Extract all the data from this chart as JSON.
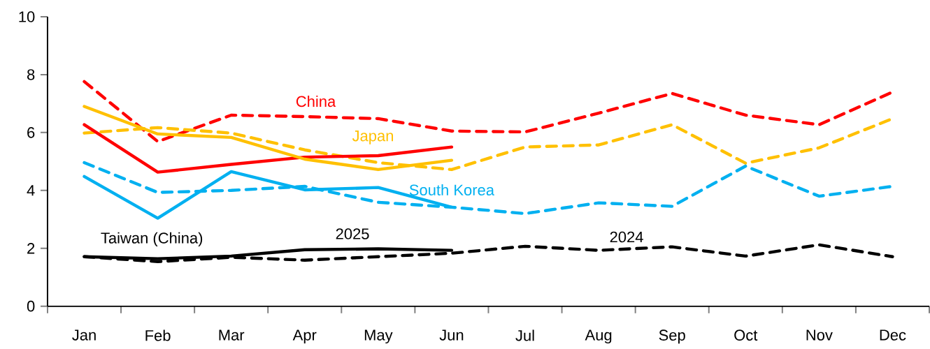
{
  "chart_data": {
    "type": "line",
    "categories": [
      "Jan",
      "Feb",
      "Mar",
      "Apr",
      "May",
      "Jun",
      "Jul",
      "Aug",
      "Sep",
      "Oct",
      "Nov",
      "Dec"
    ],
    "series": [
      {
        "color": "#ff0000",
        "line_style": "dashed",
        "values": [
          7.76,
          5.69,
          6.6,
          6.55,
          6.48,
          6.05,
          6.02,
          6.67,
          7.35,
          6.6,
          6.27,
          7.4
        ]
      },
      {
        "color": "#ffc000",
        "line_style": "dashed",
        "values": [
          5.98,
          6.17,
          5.98,
          5.4,
          4.96,
          4.72,
          5.5,
          5.57,
          6.27,
          4.94,
          5.47,
          6.48
        ]
      },
      {
        "color": "#00b0f0",
        "line_style": "dashed",
        "values": [
          4.96,
          3.93,
          4.0,
          4.14,
          3.59,
          3.42,
          3.2,
          3.57,
          3.45,
          4.84,
          3.8,
          4.14
        ]
      },
      {
        "color": "#000000",
        "line_style": "dashed",
        "values": [
          1.71,
          1.54,
          1.69,
          1.59,
          1.71,
          1.83,
          2.07,
          1.93,
          2.05,
          1.73,
          2.12,
          1.71
        ]
      },
      {
        "name": "China",
        "color": "#ff0000",
        "line_style": "solid",
        "values": [
          6.27,
          4.63,
          4.9,
          5.15,
          5.2,
          5.5,
          null,
          null,
          null,
          null,
          null,
          null
        ]
      },
      {
        "name": "Japan",
        "color": "#ffc000",
        "line_style": "solid",
        "values": [
          6.9,
          5.95,
          5.83,
          5.08,
          4.72,
          5.04,
          null,
          null,
          null,
          null,
          null,
          null
        ]
      },
      {
        "name": "South Korea",
        "color": "#00b0f0",
        "line_style": "solid",
        "values": [
          4.48,
          3.04,
          4.65,
          4.02,
          4.1,
          3.42,
          null,
          null,
          null,
          null,
          null,
          null
        ]
      },
      {
        "name": "Taiwan (China)",
        "color": "#000000",
        "line_style": "solid",
        "values": [
          1.71,
          1.64,
          1.73,
          1.95,
          1.98,
          1.93,
          null,
          null,
          null,
          null,
          null,
          null
        ]
      }
    ],
    "ylim": [
      0,
      10
    ],
    "yticks": [
      0,
      2,
      4,
      6,
      8,
      10
    ],
    "grid": false,
    "marker": "none",
    "annotations": [
      "2025",
      "2024"
    ]
  }
}
